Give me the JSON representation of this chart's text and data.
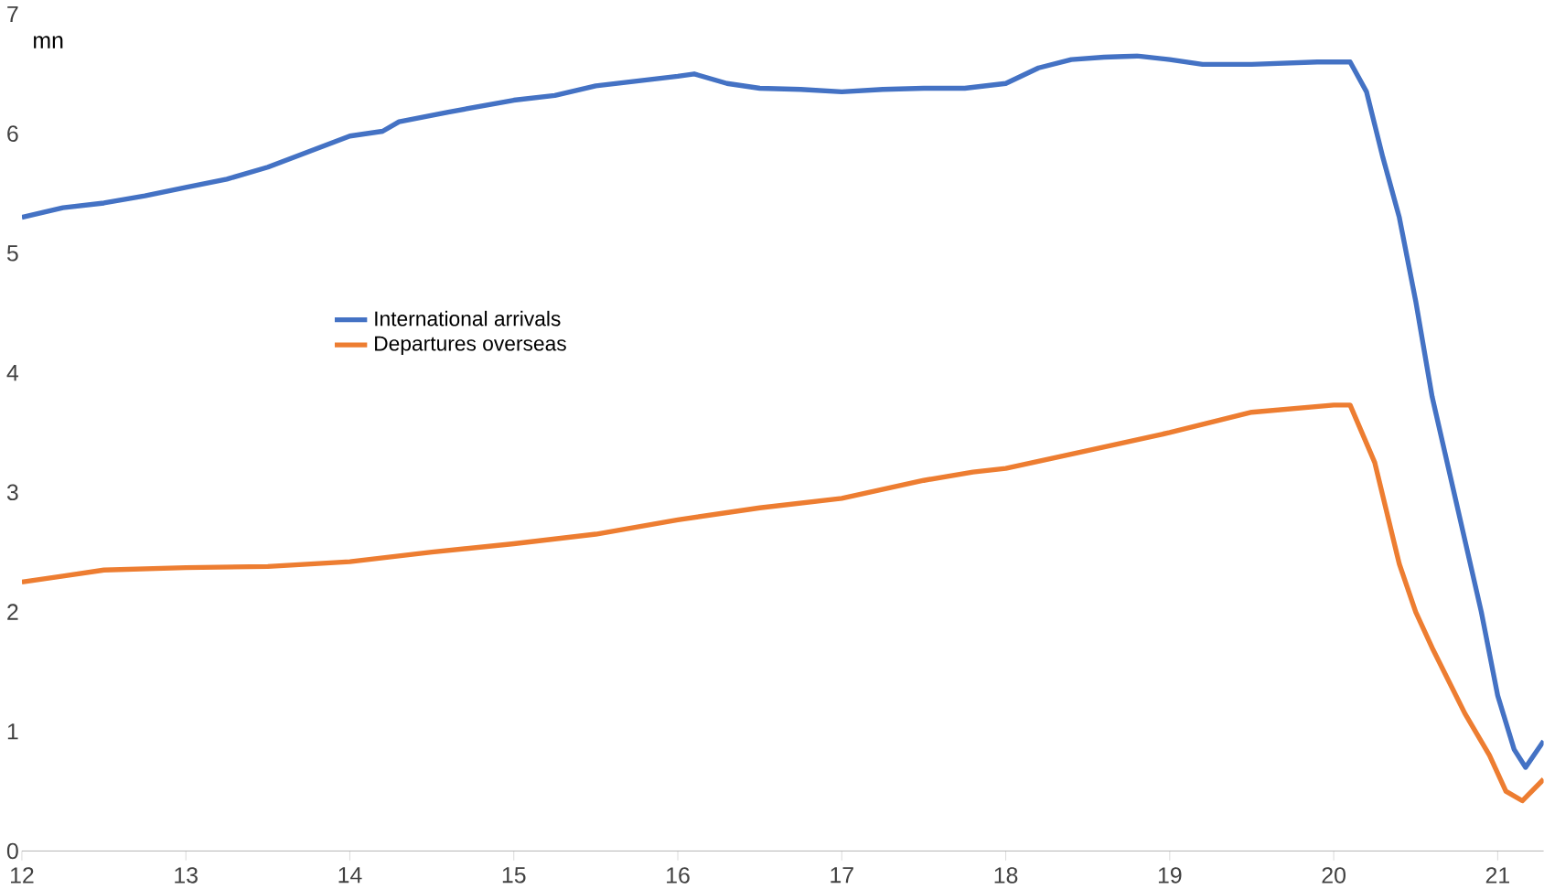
{
  "chart_data": {
    "type": "line",
    "ylabel": "mn",
    "xlim": [
      12,
      21.28
    ],
    "ylim": [
      0,
      7
    ],
    "xticks": [
      12,
      13,
      14,
      15,
      16,
      17,
      18,
      19,
      20,
      21
    ],
    "yticks": [
      0,
      1,
      2,
      3,
      4,
      5,
      6,
      7
    ],
    "grid": false,
    "legend": "center",
    "marker": "none",
    "line_style": "solid",
    "series": [
      {
        "name": "International arrivals",
        "color": "#4472c4",
        "x": [
          12,
          12.25,
          12.5,
          12.75,
          13,
          13.25,
          13.5,
          13.75,
          14,
          14.2,
          14.3,
          14.6,
          15,
          15.25,
          15.5,
          15.75,
          16,
          16.1,
          16.3,
          16.5,
          16.75,
          17,
          17.25,
          17.5,
          17.75,
          18,
          18.2,
          18.4,
          18.6,
          18.8,
          19,
          19.2,
          19.5,
          19.9,
          20.1,
          20.2,
          20.3,
          20.4,
          20.5,
          20.6,
          20.7,
          20.8,
          20.9,
          21,
          21.1,
          21.17,
          21.28
        ],
        "values": [
          5.3,
          5.38,
          5.42,
          5.48,
          5.55,
          5.62,
          5.72,
          5.85,
          5.98,
          6.02,
          6.1,
          6.18,
          6.28,
          6.32,
          6.4,
          6.44,
          6.48,
          6.5,
          6.42,
          6.38,
          6.37,
          6.35,
          6.37,
          6.38,
          6.38,
          6.42,
          6.55,
          6.62,
          6.64,
          6.65,
          6.62,
          6.58,
          6.58,
          6.6,
          6.6,
          6.35,
          5.8,
          5.3,
          4.6,
          3.8,
          3.2,
          2.6,
          2,
          1.3,
          0.85,
          0.7,
          0.92
        ]
      },
      {
        "name": "Departures overseas",
        "color": "#ed7d31",
        "x": [
          12,
          12.25,
          12.5,
          13,
          13.5,
          14,
          14.5,
          15,
          15.5,
          16,
          16.5,
          17,
          17.5,
          17.8,
          18,
          18.5,
          19,
          19.5,
          20,
          20.1,
          20.25,
          20.4,
          20.5,
          20.6,
          20.8,
          20.95,
          21.05,
          21.15,
          21.28
        ],
        "values": [
          2.25,
          2.3,
          2.35,
          2.37,
          2.38,
          2.42,
          2.5,
          2.57,
          2.65,
          2.77,
          2.87,
          2.95,
          3.1,
          3.17,
          3.2,
          3.35,
          3.5,
          3.67,
          3.73,
          3.73,
          3.25,
          2.4,
          2,
          1.7,
          1.15,
          0.8,
          0.5,
          0.42,
          0.6
        ]
      }
    ]
  }
}
